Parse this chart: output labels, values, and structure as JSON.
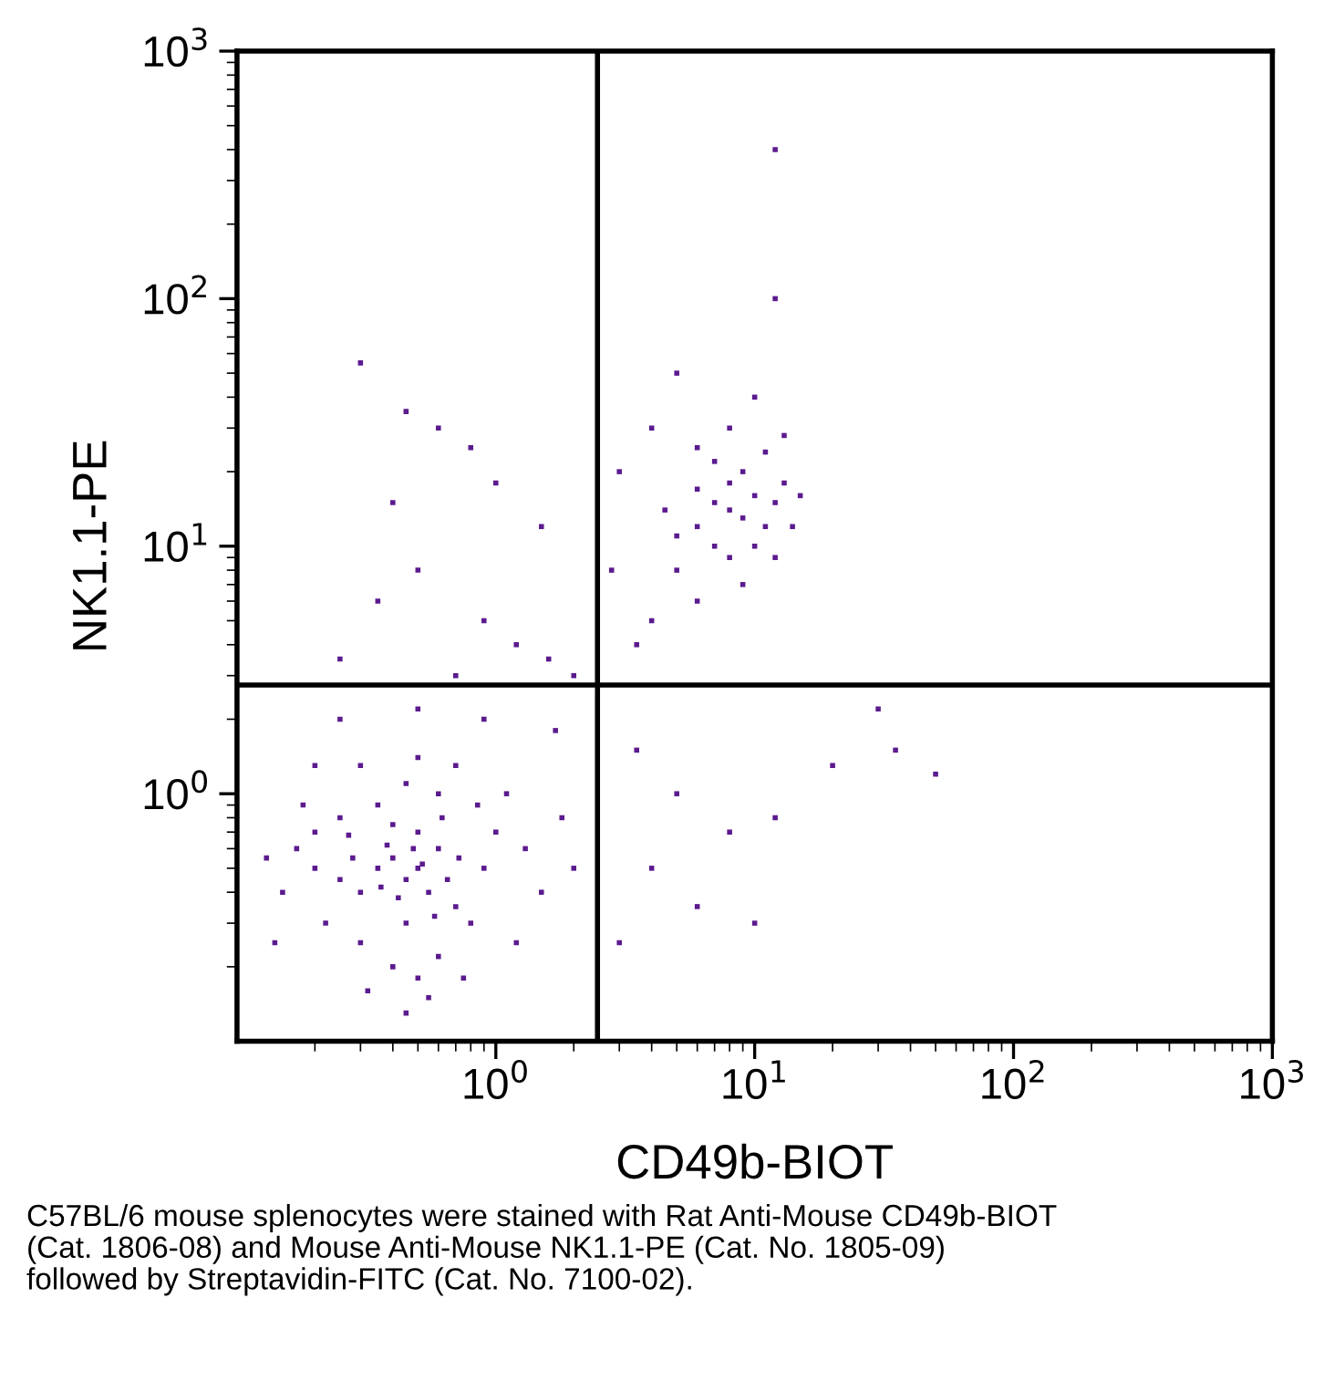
{
  "chart_data": {
    "type": "scatter",
    "xlabel": "CD49b-BIOT",
    "ylabel": "NK1.1-PE",
    "log": "xy",
    "marker": "square",
    "grid": false,
    "xlim": [
      0.1,
      1000
    ],
    "ylim": [
      0.1,
      1000
    ],
    "xticks": [
      {
        "value": 1,
        "label": "10$^{0}$"
      },
      {
        "value": 10,
        "label": "10$^{1}$"
      },
      {
        "value": 100,
        "label": "10$^{2}$"
      },
      {
        "value": 1000,
        "label": "10$^{3}$"
      }
    ],
    "yticks": [
      {
        "value": 1,
        "label": "10$^{0}$"
      },
      {
        "value": 10,
        "label": "10$^{1}$"
      },
      {
        "value": 100,
        "label": "10$^{2}$"
      },
      {
        "value": 1000,
        "label": "10$^{3}$"
      }
    ],
    "ref_lines": [
      {
        "axis": "x",
        "value": 2.47,
        "color": "#000000"
      },
      {
        "axis": "y",
        "value": 2.75,
        "color": "#000000"
      }
    ],
    "series": [
      {
        "color": "#5b1a8e",
        "x": [
          0.45,
          0.5,
          0.4,
          0.55,
          0.35,
          0.6,
          0.3,
          0.45,
          0.5,
          0.38,
          0.65,
          0.7,
          0.28,
          0.25,
          0.2,
          0.17,
          0.15,
          0.13,
          0.22,
          0.3,
          0.4,
          0.5,
          0.6,
          0.55,
          0.45,
          0.8,
          0.9,
          1.0,
          0.85,
          0.6,
          0.45,
          0.35,
          0.25,
          0.18,
          0.3,
          0.5,
          0.7,
          1.1,
          1.3,
          1.5,
          1.2,
          0.75,
          0.32,
          0.14,
          0.42,
          0.52,
          0.48,
          0.58,
          0.36,
          0.62,
          0.4,
          0.72,
          0.27,
          0.2,
          1.8,
          2.0,
          1.7,
          0.9,
          0.5,
          0.25,
          8,
          7,
          9,
          10,
          6,
          8,
          11,
          7,
          9,
          12,
          5,
          6,
          10,
          8,
          13,
          7,
          11,
          5,
          14,
          9,
          6,
          4.5,
          12,
          15,
          8,
          10,
          6,
          4,
          3.5,
          13,
          12,
          12,
          0.3,
          0.6,
          0.8,
          0.4,
          0.5,
          0.35,
          0.9,
          1.2,
          1.6,
          2.0,
          0.7,
          0.25,
          3.5,
          5,
          8,
          12,
          30,
          35,
          50,
          20,
          4,
          6,
          3,
          10,
          5,
          4,
          3,
          2.8,
          0.2,
          1.5,
          1.0,
          0.45
        ],
        "values": [
          0.45,
          0.5,
          0.55,
          0.4,
          0.5,
          0.6,
          0.4,
          0.3,
          0.7,
          0.62,
          0.45,
          0.35,
          0.55,
          0.45,
          0.5,
          0.6,
          0.4,
          0.55,
          0.3,
          0.25,
          0.2,
          0.18,
          0.22,
          0.15,
          0.13,
          0.3,
          0.5,
          0.7,
          0.9,
          1.0,
          1.1,
          0.9,
          0.8,
          0.9,
          1.3,
          1.4,
          1.3,
          1.0,
          0.6,
          0.4,
          0.25,
          0.18,
          0.16,
          0.25,
          0.38,
          0.52,
          0.6,
          0.32,
          0.42,
          0.8,
          0.75,
          0.55,
          0.68,
          0.7,
          0.8,
          0.5,
          1.8,
          2.0,
          2.2,
          2.0,
          14,
          15,
          13,
          16,
          12,
          18,
          12,
          10,
          20,
          15,
          11,
          17,
          10,
          9,
          18,
          22,
          24,
          8,
          12,
          7,
          25,
          14,
          9,
          16,
          30,
          40,
          6,
          5,
          4,
          28,
          400,
          100,
          55,
          30,
          25,
          15,
          8,
          6,
          5,
          4,
          3.5,
          3,
          3,
          3.5,
          1.5,
          1.0,
          0.7,
          0.8,
          2.2,
          1.5,
          1.2,
          1.3,
          0.5,
          0.35,
          0.25,
          0.3,
          50,
          30,
          20,
          8,
          1.3,
          12,
          18,
          35
        ]
      }
    ],
    "annotations": [
      "C57BL/6 mouse splenocytes were stained with Rat Anti-Mouse CD49b-BIOT\n(Cat. 1806-08) and Mouse Anti-Mouse NK1.1-PE (Cat. No. 1805-09)\nfollowed by Streptavidin-FITC (Cat. No. 7100-02)."
    ]
  }
}
